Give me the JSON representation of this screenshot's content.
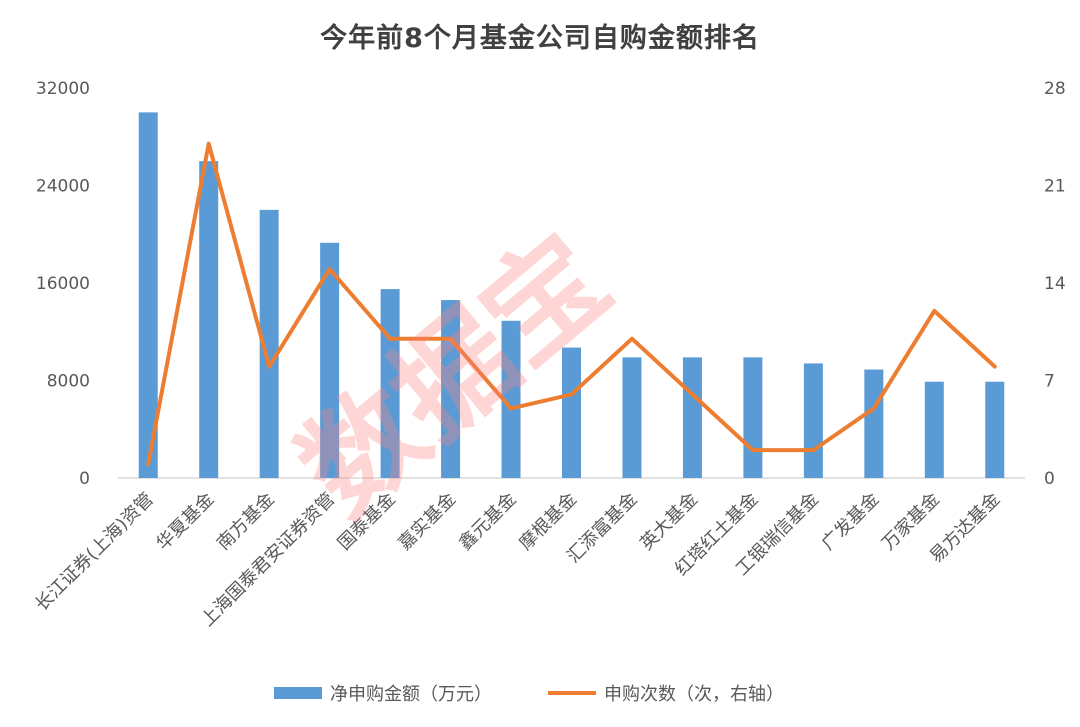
{
  "chart_data": {
    "type": "bar+line",
    "title": "今年前8个月基金公司自购金额排名",
    "categories": [
      "长江证券(上海)资管",
      "华夏基金",
      "南方基金",
      "上海国泰君安证券资管",
      "国泰基金",
      "嘉实基金",
      "鑫元基金",
      "摩根基金",
      "汇添富基金",
      "英大基金",
      "红塔红土基金",
      "工银瑞信基金",
      "广发基金",
      "万家基金",
      "易方达基金"
    ],
    "series": [
      {
        "name": "净申购金额（万元）",
        "type": "bar",
        "axis": "left",
        "color": "#5b9bd5",
        "values": [
          30000,
          26000,
          22000,
          19300,
          15500,
          14600,
          12900,
          10700,
          9900,
          9900,
          9900,
          9400,
          8900,
          7900,
          7900
        ]
      },
      {
        "name": "申购次数（次，右轴）",
        "type": "line",
        "axis": "right",
        "color": "#ed7d31",
        "values": [
          1,
          24,
          8,
          15,
          10,
          10,
          5,
          6,
          10,
          6,
          2,
          2,
          5,
          12,
          8
        ]
      }
    ],
    "y_left": {
      "min": 0,
      "max": 32000,
      "ticks": [
        "0",
        "8000",
        "16000",
        "24000",
        "32000"
      ]
    },
    "y_right": {
      "min": 0,
      "max": 28,
      "ticks": [
        "0",
        "7",
        "14",
        "21",
        "28"
      ]
    },
    "legend_position": "bottom",
    "grid": false
  },
  "watermark": "数据宝"
}
